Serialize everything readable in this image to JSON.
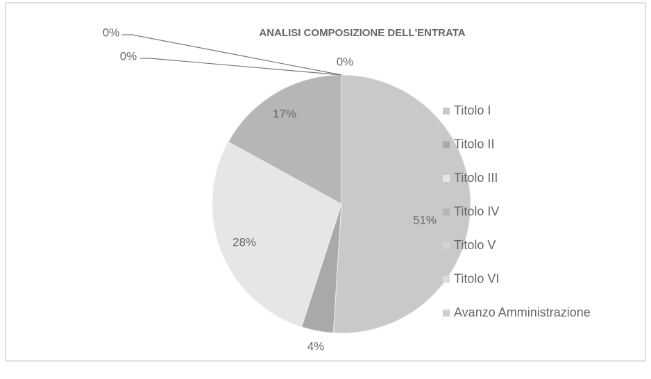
{
  "chart_data": {
    "type": "pie",
    "title": "ANALISI COMPOSIZIONE DELL'ENTRATA",
    "categories": [
      "Titolo I",
      "Titolo II",
      "Titolo III",
      "Titolo IV",
      "Titolo V",
      "Titolo VI",
      "Avanzo Amministrazione"
    ],
    "values": [
      51,
      4,
      28,
      17,
      0,
      0,
      0
    ],
    "value_labels": [
      "51%",
      "4%",
      "28%",
      "17%",
      "0%",
      "0%",
      "0%"
    ],
    "colors": [
      "#c9c9c9",
      "#a9a9a9",
      "#e6e6e6",
      "#b6b6b6",
      "#d2d2d2",
      "#dcdcdc",
      "#cfcfcf"
    ],
    "legend": "right"
  }
}
